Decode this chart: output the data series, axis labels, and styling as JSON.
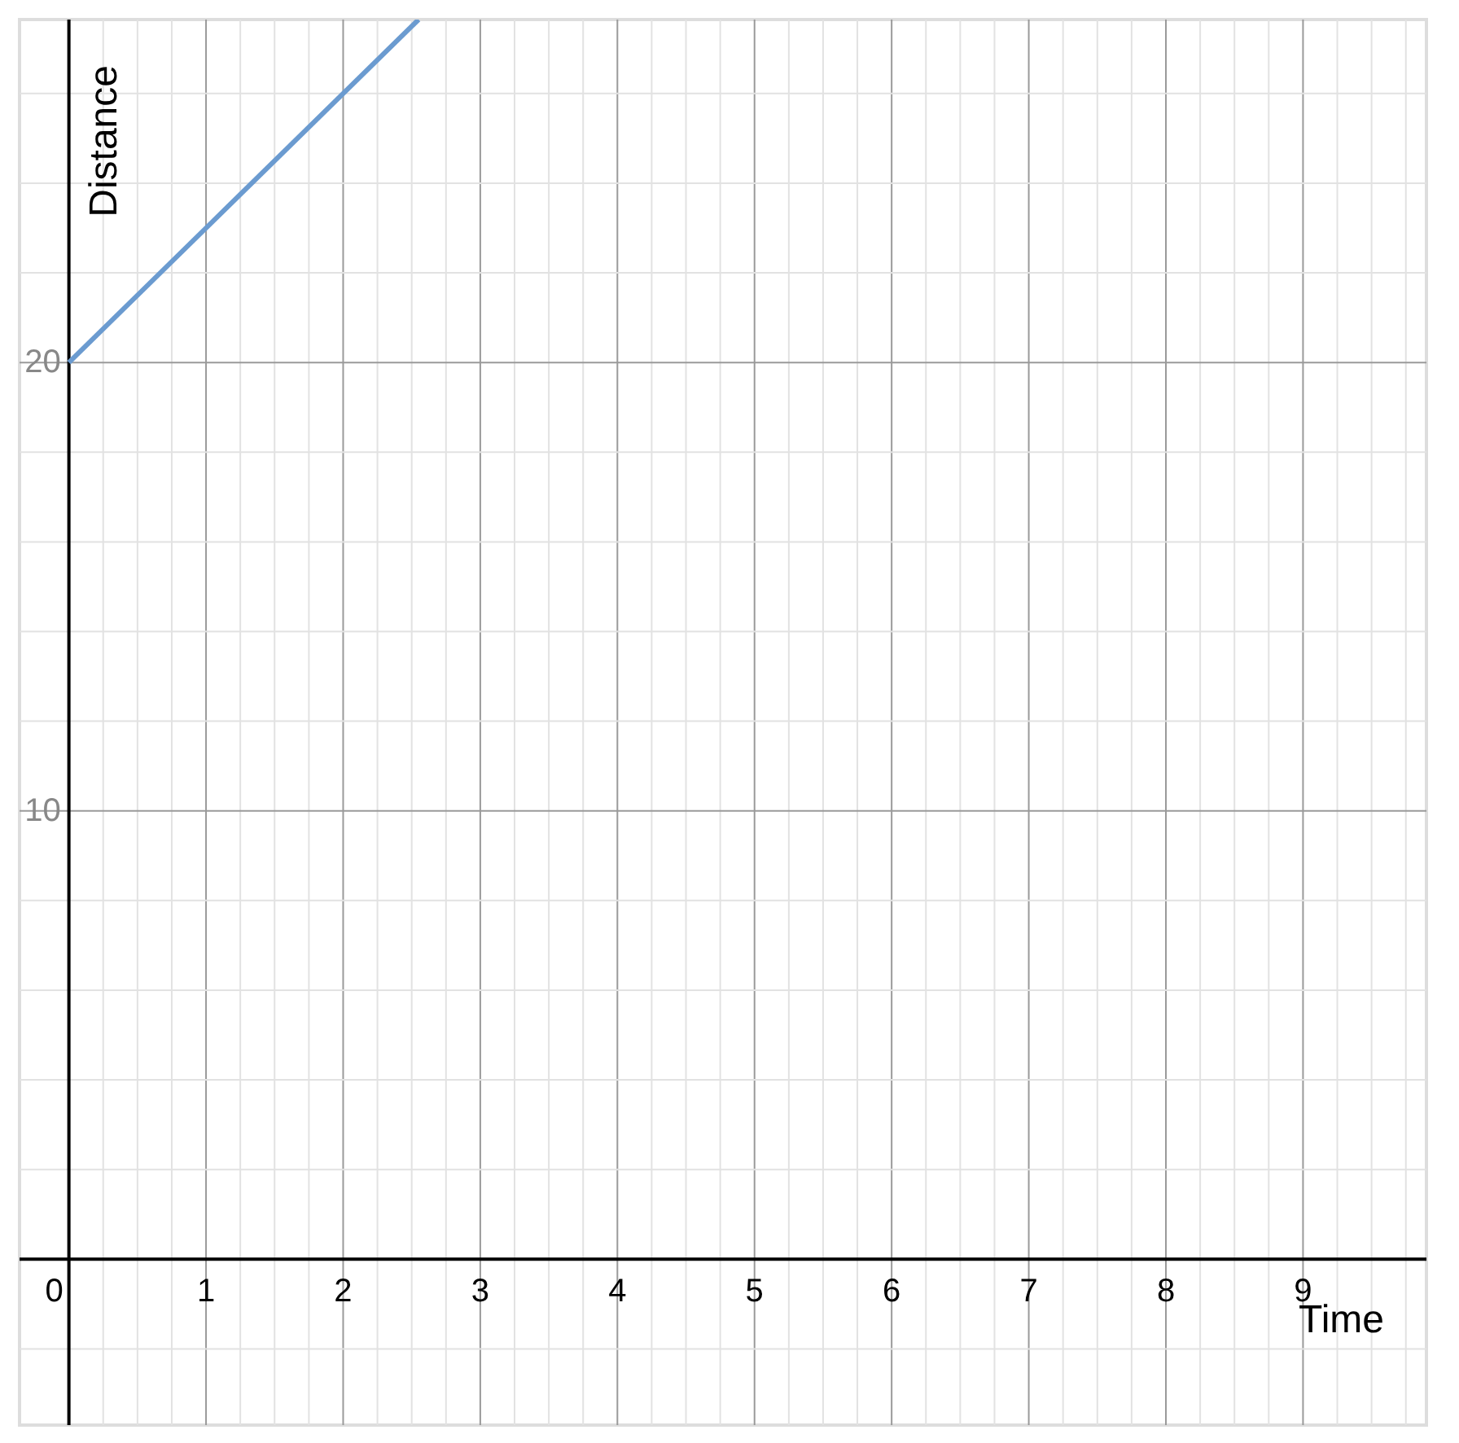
{
  "chart_data": {
    "type": "line",
    "xlabel": "Time",
    "ylabel": "Distance",
    "x": [
      0,
      2.55
    ],
    "series": [
      {
        "color": "#6b9bd0",
        "values": [
          20,
          27.65
        ]
      }
    ],
    "xlim": [
      -0.36,
      9.9
    ],
    "ylim": [
      -3.7,
      27.65
    ],
    "xticks": [
      {
        "value": 0,
        "label": "0"
      },
      {
        "value": 0.25,
        "label": null
      },
      {
        "value": 0.5,
        "label": null
      },
      {
        "value": 0.75,
        "label": null
      },
      1,
      {
        "value": 1.25,
        "label": null
      },
      {
        "value": 1.5,
        "label": null
      },
      {
        "value": 1.75,
        "label": null
      },
      2,
      {
        "value": 2.25,
        "label": null
      },
      {
        "value": 2.5,
        "label": null
      },
      {
        "value": 2.75,
        "label": null
      },
      3,
      {
        "value": 3.25,
        "label": null
      },
      {
        "value": 3.5,
        "label": null
      },
      {
        "value": 3.75,
        "label": null
      },
      4,
      {
        "value": 4.25,
        "label": null
      },
      {
        "value": 4.5,
        "label": null
      },
      {
        "value": 4.75,
        "label": null
      },
      5,
      {
        "value": 5.25,
        "label": null
      },
      {
        "value": 5.5,
        "label": null
      },
      {
        "value": 5.75,
        "label": null
      },
      6,
      {
        "value": 6.25,
        "label": null
      },
      {
        "value": 6.5,
        "label": null
      },
      {
        "value": 6.75,
        "label": null
      },
      7,
      {
        "value": 7.25,
        "label": null
      },
      {
        "value": 7.5,
        "label": null
      },
      {
        "value": 7.75,
        "label": null
      },
      8,
      {
        "value": 8.25,
        "label": null
      },
      {
        "value": 8.5,
        "label": null
      },
      {
        "value": 8.75,
        "label": null
      },
      9,
      {
        "value": 9.25,
        "label": null
      },
      {
        "value": 9.5,
        "label": null
      },
      {
        "value": 9.75,
        "label": null
      }
    ],
    "yticks": [
      {
        "value": -2,
        "label": null
      },
      {
        "value": 2,
        "label": null
      },
      {
        "value": 4,
        "label": null
      },
      {
        "value": 6,
        "label": null
      },
      {
        "value": 8,
        "label": null
      },
      10,
      {
        "value": 12,
        "label": null
      },
      {
        "value": 14,
        "label": null
      },
      {
        "value": 16,
        "label": null
      },
      {
        "value": 18,
        "label": null
      },
      20,
      {
        "value": 22,
        "label": null
      },
      {
        "value": 24,
        "label": null
      },
      {
        "value": 26,
        "label": null
      }
    ],
    "grid": true,
    "marker": "none",
    "line_style": "solid"
  }
}
